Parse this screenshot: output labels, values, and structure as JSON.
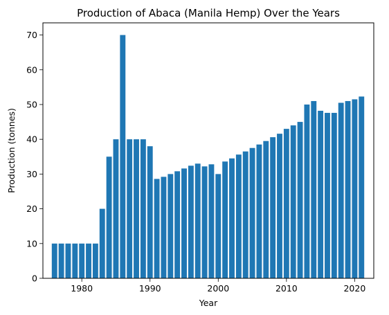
{
  "chart_data": {
    "type": "bar",
    "title": "Production of Abaca (Manila Hemp) Over the Years",
    "xlabel": "Year",
    "ylabel": "Production (tonnes)",
    "xlim": [
      1974.3,
      2022.8
    ],
    "ylim": [
      0,
      73.5
    ],
    "xticks": [
      1980,
      1990,
      2000,
      2010,
      2020
    ],
    "yticks": [
      0,
      10,
      20,
      30,
      40,
      50,
      60,
      70
    ],
    "bar_color": "#1f77b4",
    "grid": false,
    "x": [
      1976,
      1977,
      1978,
      1979,
      1980,
      1981,
      1982,
      1983,
      1984,
      1985,
      1986,
      1987,
      1988,
      1989,
      1990,
      1991,
      1992,
      1993,
      1994,
      1995,
      1996,
      1997,
      1998,
      1999,
      2000,
      2001,
      2002,
      2003,
      2004,
      2005,
      2006,
      2007,
      2008,
      2009,
      2010,
      2011,
      2012,
      2013,
      2014,
      2015,
      2016,
      2017,
      2018,
      2019,
      2020,
      2021
    ],
    "values": [
      10,
      10,
      10,
      10,
      10,
      10,
      10,
      20,
      35,
      40,
      70,
      40,
      40,
      40,
      38,
      28.6,
      29.2,
      30,
      30.8,
      31.6,
      32.4,
      33,
      32.2,
      32.8,
      30,
      33.6,
      34.5,
      35.6,
      36.5,
      37.5,
      38.5,
      39.5,
      40.6,
      41.6,
      43,
      44,
      45,
      50,
      51,
      48.2,
      47.6,
      47.6,
      50.5,
      51,
      51.5,
      52.3
    ]
  }
}
